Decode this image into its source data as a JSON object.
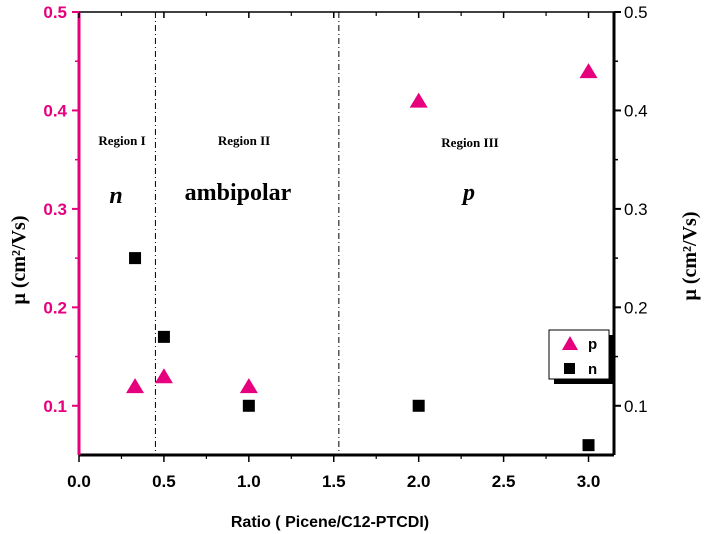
{
  "chart_data": {
    "type": "scatter",
    "title": "",
    "xlabel": "Ratio ( Picene/C12-PTCDI)",
    "ylabel_left": "μ (cm²/Vs)",
    "ylabel_right": "μ (cm²/Vs)",
    "xlim": [
      0.0,
      3.15
    ],
    "ylim": [
      0.05,
      0.5
    ],
    "x_ticks": [
      "0.0",
      "0.5",
      "1.0",
      "1.5",
      "2.0",
      "2.5",
      "3.0"
    ],
    "y_ticks_left": [
      "0.1",
      "0.2",
      "0.3",
      "0.4",
      "0.5"
    ],
    "y_ticks_right": [
      "0.1",
      "0.2",
      "0.3",
      "0.4",
      "0.5"
    ],
    "series": [
      {
        "name": "p",
        "marker": "triangle",
        "color": "#e6007e",
        "points": [
          {
            "x": 0.33,
            "y": 0.12
          },
          {
            "x": 0.5,
            "y": 0.13
          },
          {
            "x": 1.0,
            "y": 0.12
          },
          {
            "x": 2.0,
            "y": 0.41
          },
          {
            "x": 3.0,
            "y": 0.44
          }
        ]
      },
      {
        "name": "n",
        "marker": "square",
        "color": "#000000",
        "points": [
          {
            "x": 0.33,
            "y": 0.25
          },
          {
            "x": 0.5,
            "y": 0.17
          },
          {
            "x": 1.0,
            "y": 0.1
          },
          {
            "x": 2.0,
            "y": 0.1
          },
          {
            "x": 3.0,
            "y": 0.06
          }
        ]
      }
    ],
    "region_dividers_x": [
      0.45,
      1.53
    ],
    "regions": [
      {
        "title": "Region I",
        "type": "n"
      },
      {
        "title": "Region II",
        "type": "ambipolar"
      },
      {
        "title": "Region III",
        "type": "p"
      }
    ],
    "legend": {
      "placement": "right",
      "entries": [
        "p",
        "n"
      ]
    },
    "grid": false,
    "left_axis_color": "#e6007e",
    "right_axis_color": "#000000"
  }
}
